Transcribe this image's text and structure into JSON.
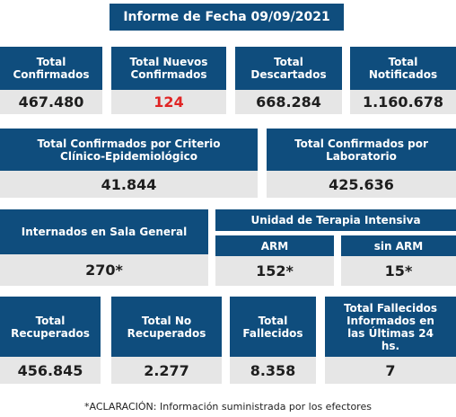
{
  "header": {
    "title": "Informe de Fecha 09/09/2021"
  },
  "row1": [
    {
      "label": "Total Confirmados",
      "value": "467.480"
    },
    {
      "label": "Total Nuevos Confirmados",
      "value": "124"
    },
    {
      "label": "Total Descartados",
      "value": "668.284"
    },
    {
      "label": "Total Notificados",
      "value": "1.160.678"
    }
  ],
  "row2": [
    {
      "label": "Total Confirmados por Criterio Clínico-Epidemiológico",
      "value": "41.844"
    },
    {
      "label": "Total Confirmados por Laboratorio",
      "value": "425.636"
    }
  ],
  "row3": {
    "internados": {
      "label": "Internados en Sala General",
      "value": "270*"
    },
    "uti": {
      "title": "Unidad de Terapia Intensiva",
      "arm": {
        "label": "ARM",
        "value": "152*"
      },
      "sin_arm": {
        "label": "sin ARM",
        "value": "15*"
      }
    }
  },
  "row4": [
    {
      "label": "Total Recuperados",
      "value": "456.845"
    },
    {
      "label": "Total No Recuperados",
      "value": "2.277"
    },
    {
      "label": "Total Fallecidos",
      "value": "8.358"
    },
    {
      "label": "Total Fallecidos Informados en las Últimas 24 hs.",
      "value": "7"
    }
  ],
  "footer": {
    "note": "*ACLARACIÓN: Información suministrada por los efectores"
  }
}
